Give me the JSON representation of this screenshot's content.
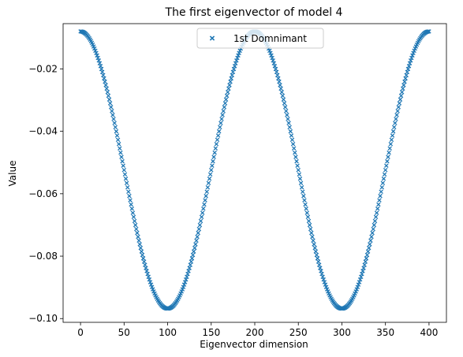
{
  "chart_data": {
    "type": "scatter",
    "title": "The first eigenvector of model 4",
    "xlabel": "Eigenvector dimension",
    "ylabel": "Value",
    "xlim": [
      -20,
      420
    ],
    "ylim": [
      -0.1012,
      -0.0055
    ],
    "xticks": [
      0,
      50,
      100,
      150,
      200,
      250,
      300,
      350,
      400
    ],
    "xtick_labels": [
      "0",
      "50",
      "100",
      "150",
      "200",
      "250",
      "300",
      "350",
      "400"
    ],
    "yticks": [
      -0.02,
      -0.04,
      -0.06,
      -0.08,
      -0.1
    ],
    "ytick_labels": [
      "−0.02",
      "−0.04",
      "−0.06",
      "−0.08",
      "−0.10"
    ],
    "grid": false,
    "legend": {
      "position": "top-center",
      "entries": [
        "1st Domnimant"
      ]
    },
    "series": [
      {
        "name": "1st Domnimant",
        "marker": "x",
        "color": "#1f77b4",
        "formula": "y = -0.0524 + 0.0444*cos(pi*x/100)",
        "x": [
          0,
          1,
          2,
          3,
          4,
          5,
          6,
          7,
          8,
          9,
          10,
          11,
          12,
          13,
          14,
          15,
          16,
          17,
          18,
          19,
          20,
          21,
          22,
          23,
          24,
          25,
          26,
          27,
          28,
          29,
          30,
          31,
          32,
          33,
          34,
          35,
          36,
          37,
          38,
          39,
          40,
          41,
          42,
          43,
          44,
          45,
          46,
          47,
          48,
          49,
          50,
          51,
          52,
          53,
          54,
          55,
          56,
          57,
          58,
          59,
          60,
          61,
          62,
          63,
          64,
          65,
          66,
          67,
          68,
          69,
          70,
          71,
          72,
          73,
          74,
          75,
          76,
          77,
          78,
          79,
          80,
          81,
          82,
          83,
          84,
          85,
          86,
          87,
          88,
          89,
          90,
          91,
          92,
          93,
          94,
          95,
          96,
          97,
          98,
          99,
          100,
          101,
          102,
          103,
          104,
          105,
          106,
          107,
          108,
          109,
          110,
          111,
          112,
          113,
          114,
          115,
          116,
          117,
          118,
          119,
          120,
          121,
          122,
          123,
          124,
          125,
          126,
          127,
          128,
          129,
          130,
          131,
          132,
          133,
          134,
          135,
          136,
          137,
          138,
          139,
          140,
          141,
          142,
          143,
          144,
          145,
          146,
          147,
          148,
          149,
          150,
          151,
          152,
          153,
          154,
          155,
          156,
          157,
          158,
          159,
          160,
          161,
          162,
          163,
          164,
          165,
          166,
          167,
          168,
          169,
          170,
          171,
          172,
          173,
          174,
          175,
          176,
          177,
          178,
          179,
          180,
          181,
          182,
          183,
          184,
          185,
          186,
          187,
          188,
          189,
          190,
          191,
          192,
          193,
          194,
          195,
          196,
          197,
          198,
          199,
          200,
          201,
          202,
          203,
          204,
          205,
          206,
          207,
          208,
          209,
          210,
          211,
          212,
          213,
          214,
          215,
          216,
          217,
          218,
          219,
          220,
          221,
          222,
          223,
          224,
          225,
          226,
          227,
          228,
          229,
          230,
          231,
          232,
          233,
          234,
          235,
          236,
          237,
          238,
          239,
          240,
          241,
          242,
          243,
          244,
          245,
          246,
          247,
          248,
          249,
          250,
          251,
          252,
          253,
          254,
          255,
          256,
          257,
          258,
          259,
          260,
          261,
          262,
          263,
          264,
          265,
          266,
          267,
          268,
          269,
          270,
          271,
          272,
          273,
          274,
          275,
          276,
          277,
          278,
          279,
          280,
          281,
          282,
          283,
          284,
          285,
          286,
          287,
          288,
          289,
          290,
          291,
          292,
          293,
          294,
          295,
          296,
          297,
          298,
          299,
          300,
          301,
          302,
          303,
          304,
          305,
          306,
          307,
          308,
          309,
          310,
          311,
          312,
          313,
          314,
          315,
          316,
          317,
          318,
          319,
          320,
          321,
          322,
          323,
          324,
          325,
          326,
          327,
          328,
          329,
          330,
          331,
          332,
          333,
          334,
          335,
          336,
          337,
          338,
          339,
          340,
          341,
          342,
          343,
          344,
          345,
          346,
          347,
          348,
          349,
          350,
          351,
          352,
          353,
          354,
          355,
          356,
          357,
          358,
          359,
          360,
          361,
          362,
          363,
          364,
          365,
          366,
          367,
          368,
          369,
          370,
          371,
          372,
          373,
          374,
          375,
          376,
          377,
          378,
          379,
          380,
          381,
          382,
          383,
          384,
          385,
          386,
          387,
          388,
          389,
          390,
          391,
          392,
          393,
          394,
          395,
          396,
          397,
          398,
          399,
          400
        ]
      }
    ]
  }
}
